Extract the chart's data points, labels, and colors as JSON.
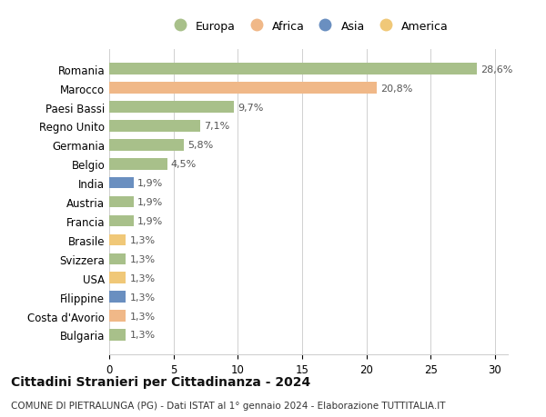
{
  "countries": [
    "Romania",
    "Marocco",
    "Paesi Bassi",
    "Regno Unito",
    "Germania",
    "Belgio",
    "India",
    "Austria",
    "Francia",
    "Brasile",
    "Svizzera",
    "USA",
    "Filippine",
    "Costa d'Avorio",
    "Bulgaria"
  ],
  "values": [
    28.6,
    20.8,
    9.7,
    7.1,
    5.8,
    4.5,
    1.9,
    1.9,
    1.9,
    1.3,
    1.3,
    1.3,
    1.3,
    1.3,
    1.3
  ],
  "labels": [
    "28,6%",
    "20,8%",
    "9,7%",
    "7,1%",
    "5,8%",
    "4,5%",
    "1,9%",
    "1,9%",
    "1,9%",
    "1,3%",
    "1,3%",
    "1,3%",
    "1,3%",
    "1,3%",
    "1,3%"
  ],
  "colors": [
    "#a8c08a",
    "#f0b888",
    "#a8c08a",
    "#a8c08a",
    "#a8c08a",
    "#a8c08a",
    "#6a8fc0",
    "#a8c08a",
    "#a8c08a",
    "#f0c878",
    "#a8c08a",
    "#f0c878",
    "#6a8fc0",
    "#f0b888",
    "#a8c08a"
  ],
  "legend_labels": [
    "Europa",
    "Africa",
    "Asia",
    "America"
  ],
  "legend_colors": [
    "#a8c08a",
    "#f0b888",
    "#6a8fc0",
    "#f0c878"
  ],
  "title": "Cittadini Stranieri per Cittadinanza - 2024",
  "subtitle": "COMUNE DI PIETRALUNGA (PG) - Dati ISTAT al 1° gennaio 2024 - Elaborazione TUTTITALIA.IT",
  "xlim": [
    0,
    31
  ],
  "xticks": [
    0,
    5,
    10,
    15,
    20,
    25,
    30
  ],
  "bg_color": "#ffffff",
  "grid_color": "#d0d0d0",
  "bar_label_fontsize": 8,
  "tick_label_fontsize": 8.5,
  "legend_fontsize": 9,
  "title_fontsize": 10,
  "subtitle_fontsize": 7.5
}
